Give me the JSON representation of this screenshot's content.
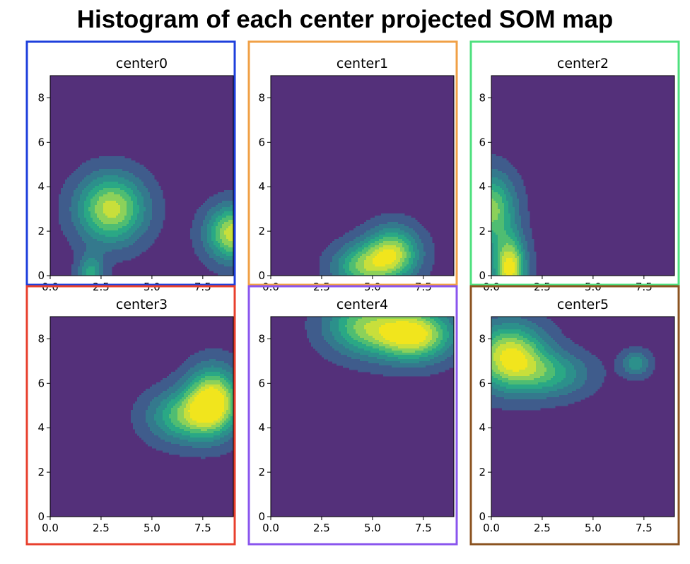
{
  "figure": {
    "title": "Histogram of each center projected SOM map"
  },
  "colors": {
    "background_level": "#54307a",
    "viridis_levels": [
      "#54307a",
      "#3f5c8c",
      "#34798d",
      "#2c908b",
      "#2aa885",
      "#4fbd72",
      "#8cd15a",
      "#c8df3b",
      "#f1e51d"
    ],
    "frame_colors": [
      "#1e3fdc",
      "#f0a046",
      "#4ee07e",
      "#e8402e",
      "#8a55ee",
      "#8b5320"
    ]
  },
  "chart_data": [
    {
      "type": "heatmap",
      "title": "center0",
      "xlim": [
        0,
        9
      ],
      "ylim": [
        0,
        9
      ],
      "xticks": [
        "0.0",
        "2.5",
        "5.0",
        "7.5"
      ],
      "yticks": [
        "0",
        "2",
        "4",
        "6",
        "8"
      ],
      "xtick_values": [
        0,
        2.5,
        5,
        7.5
      ],
      "ytick_values": [
        0,
        2,
        4,
        6,
        8
      ],
      "blobs": [
        {
          "x": 3.0,
          "y": 3.0,
          "sx": 1.15,
          "sy": 1.05,
          "peak": 0.82
        },
        {
          "x": 9.0,
          "y": 1.9,
          "sx": 0.9,
          "sy": 0.85,
          "peak": 0.85
        },
        {
          "x": 2.0,
          "y": 0.1,
          "sx": 0.45,
          "sy": 0.6,
          "peak": 0.45
        }
      ]
    },
    {
      "type": "heatmap",
      "title": "center1",
      "xlim": [
        0,
        9
      ],
      "ylim": [
        0,
        9
      ],
      "xticks": [
        "0.0",
        "2.5",
        "5.0",
        "7.5"
      ],
      "yticks": [
        "0",
        "2",
        "4",
        "6",
        "8"
      ],
      "xtick_values": [
        0,
        2.5,
        5,
        7.5
      ],
      "ytick_values": [
        0,
        2,
        4,
        6,
        8
      ],
      "blobs": [
        {
          "x": 6.0,
          "y": 1.0,
          "sx": 0.9,
          "sy": 0.8,
          "peak": 0.78
        },
        {
          "x": 4.5,
          "y": 0.4,
          "sx": 1.0,
          "sy": 0.7,
          "peak": 0.6
        }
      ]
    },
    {
      "type": "heatmap",
      "title": "center2",
      "xlim": [
        0,
        9
      ],
      "ylim": [
        0,
        9
      ],
      "xticks": [
        "0.0",
        "2.5",
        "5.0",
        "7.5"
      ],
      "yticks": [
        "0",
        "2",
        "4",
        "6",
        "8"
      ],
      "xtick_values": [
        0,
        2.5,
        5,
        7.5
      ],
      "ytick_values": [
        0,
        2,
        4,
        6,
        8
      ],
      "blobs": [
        {
          "x": 0.0,
          "y": 3.0,
          "sx": 0.8,
          "sy": 1.1,
          "peak": 0.7
        },
        {
          "x": 0.9,
          "y": 0.3,
          "sx": 0.55,
          "sy": 1.0,
          "peak": 0.95
        }
      ]
    },
    {
      "type": "heatmap",
      "title": "center3",
      "xlim": [
        0,
        9
      ],
      "ylim": [
        0,
        9
      ],
      "xticks": [
        "0.0",
        "2.5",
        "5.0",
        "7.5"
      ],
      "yticks": [
        "0",
        "2",
        "4",
        "6",
        "8"
      ],
      "xtick_values": [
        0,
        2.5,
        5,
        7.5
      ],
      "ytick_values": [
        0,
        2,
        4,
        6,
        8
      ],
      "blobs": [
        {
          "x": 8.0,
          "y": 5.2,
          "sx": 0.9,
          "sy": 1.0,
          "peak": 0.98
        },
        {
          "x": 6.5,
          "y": 4.5,
          "sx": 1.2,
          "sy": 0.8,
          "peak": 0.55
        }
      ]
    },
    {
      "type": "heatmap",
      "title": "center4",
      "xlim": [
        0,
        9
      ],
      "ylim": [
        0,
        9
      ],
      "xticks": [
        "0.0",
        "2.5",
        "5.0",
        "7.5"
      ],
      "yticks": [
        "0",
        "2",
        "4",
        "6",
        "8"
      ],
      "xtick_values": [
        0,
        2.5,
        5,
        7.5
      ],
      "ytick_values": [
        0,
        2,
        4,
        6,
        8
      ],
      "blobs": [
        {
          "x": 7.0,
          "y": 8.2,
          "sx": 1.3,
          "sy": 0.8,
          "peak": 0.98
        },
        {
          "x": 4.5,
          "y": 8.6,
          "sx": 1.3,
          "sy": 0.9,
          "peak": 0.6
        }
      ]
    },
    {
      "type": "heatmap",
      "title": "center5",
      "xlim": [
        0,
        9
      ],
      "ylim": [
        0,
        9
      ],
      "xticks": [
        "0.0",
        "2.5",
        "5.0",
        "7.5"
      ],
      "yticks": [
        "0",
        "2",
        "4",
        "6",
        "8"
      ],
      "xtick_values": [
        0,
        2.5,
        5,
        7.5
      ],
      "ytick_values": [
        0,
        2,
        4,
        6,
        8
      ],
      "blobs": [
        {
          "x": 0.9,
          "y": 7.2,
          "sx": 1.2,
          "sy": 1.0,
          "peak": 0.92
        },
        {
          "x": 3.0,
          "y": 6.4,
          "sx": 1.3,
          "sy": 0.7,
          "peak": 0.42
        },
        {
          "x": 7.1,
          "y": 6.9,
          "sx": 0.5,
          "sy": 0.4,
          "peak": 0.38
        }
      ]
    }
  ]
}
